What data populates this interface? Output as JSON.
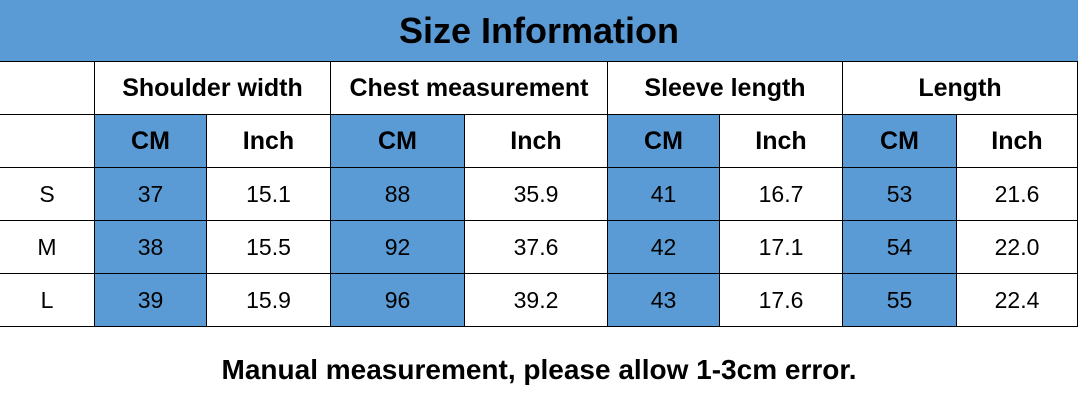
{
  "header": {
    "title": "Size Information"
  },
  "table": {
    "groups": [
      "Shoulder width",
      "Chest measurement",
      "Sleeve length",
      "Length"
    ],
    "units": [
      "CM",
      "Inch",
      "CM",
      "Inch",
      "CM",
      "Inch",
      "CM",
      "Inch"
    ],
    "rows": [
      [
        "S",
        "37",
        "15.1",
        "88",
        "35.9",
        "41",
        "16.7",
        "53",
        "21.6"
      ],
      [
        "M",
        "38",
        "15.5",
        "92",
        "37.6",
        "42",
        "17.1",
        "54",
        "22.0"
      ],
      [
        "L",
        "39",
        "15.9",
        "96",
        "39.2",
        "43",
        "17.6",
        "55",
        "22.4"
      ]
    ]
  },
  "footer": {
    "note": "Manual measurement, please allow 1-3cm error."
  }
}
